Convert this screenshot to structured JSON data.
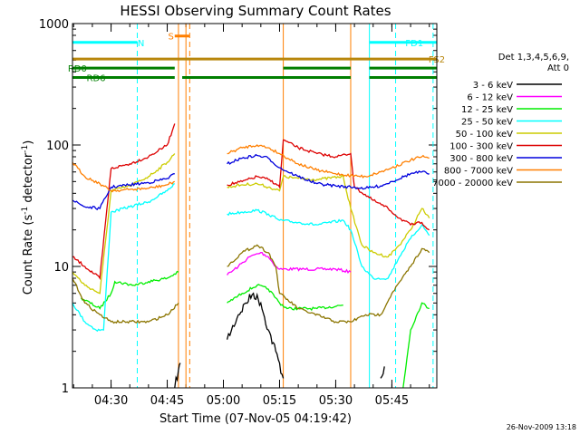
{
  "chart_data": {
    "type": "line",
    "title": "HESSI Observing Summary Count Rates",
    "xlabel": "Start Time (07-Nov-05 04:19:42)",
    "ylabel_main": "Count Rate (s",
    "ylabel_sup1": "-1",
    "ylabel_mid": " detector",
    "ylabel_sup2": "-1",
    "ylabel_end": ")",
    "xlim": [
      "04:19:42",
      "05:57:00"
    ],
    "ylim": [
      1,
      1000
    ],
    "yscale": "log",
    "x_ticks": [
      "04:30",
      "04:45",
      "05:00",
      "05:15",
      "05:30",
      "05:45"
    ],
    "y_ticks": [
      "1",
      "10",
      "100",
      "1000"
    ],
    "legend_position": "right",
    "legend_header": [
      "Det 1,3,4,5,6,9,",
      "Att 0"
    ],
    "series": [
      {
        "name": "3 - 6 keV",
        "color": "#000000",
        "points": [
          [
            "04:19:42",
            null
          ],
          [
            "04:47",
            1
          ],
          [
            "04:48",
            1.4
          ],
          [
            "04:48:30",
            1.6
          ],
          [
            "04:49",
            null
          ],
          [
            "05:01",
            2.5
          ],
          [
            "05:04",
            4
          ],
          [
            "05:06",
            5
          ],
          [
            "05:08",
            6
          ],
          [
            "05:10",
            5
          ],
          [
            "05:12",
            3
          ],
          [
            "05:14",
            2
          ],
          [
            "05:16",
            1.2
          ],
          [
            "05:17",
            null
          ],
          [
            "05:42",
            1.2
          ],
          [
            "05:43",
            1.5
          ],
          [
            "05:44",
            null
          ]
        ]
      },
      {
        "name": "6 - 12 keV",
        "color": "#ff00ff",
        "points": [
          [
            "05:01",
            8.5
          ],
          [
            "05:04",
            10
          ],
          [
            "05:07",
            12
          ],
          [
            "05:10",
            13
          ],
          [
            "05:12",
            12
          ],
          [
            "05:14",
            10
          ],
          [
            "05:15",
            9.5
          ],
          [
            "05:30",
            9.5
          ],
          [
            "05:34",
            9
          ]
        ]
      },
      {
        "name": "12 - 25 keV",
        "color": "#00ee00",
        "points": [
          [
            "04:22",
            5.5
          ],
          [
            "04:27",
            4.5
          ],
          [
            "04:30",
            6
          ],
          [
            "04:31",
            7.5
          ],
          [
            "04:36",
            7
          ],
          [
            "04:40",
            7.5
          ],
          [
            "04:45",
            8
          ],
          [
            "04:48",
            9
          ],
          [
            "04:49",
            null
          ],
          [
            "05:01",
            5
          ],
          [
            "05:05",
            6
          ],
          [
            "05:09",
            7
          ],
          [
            "05:12",
            6.5
          ],
          [
            "05:14",
            5.5
          ],
          [
            "05:15",
            5
          ],
          [
            "05:17",
            4.5
          ],
          [
            "05:25",
            4.5
          ],
          [
            "05:32",
            4.8
          ],
          [
            "05:34",
            null
          ],
          [
            "05:48",
            1
          ],
          [
            "05:50",
            3
          ],
          [
            "05:53",
            5
          ],
          [
            "05:55",
            4.5
          ]
        ]
      },
      {
        "name": "25 - 50 keV",
        "color": "#00ffff",
        "points": [
          [
            "04:19:42",
            5
          ],
          [
            "04:23",
            3.5
          ],
          [
            "04:26",
            3
          ],
          [
            "04:28",
            3
          ],
          [
            "04:30",
            28
          ],
          [
            "04:35",
            31
          ],
          [
            "04:40",
            34
          ],
          [
            "04:45",
            42
          ],
          [
            "04:47",
            48
          ],
          [
            "04:49",
            null
          ],
          [
            "05:01",
            27
          ],
          [
            "05:05",
            28
          ],
          [
            "05:09",
            29
          ],
          [
            "05:12",
            27
          ],
          [
            "05:14",
            25
          ],
          [
            "05:15",
            24
          ],
          [
            "05:20",
            23
          ],
          [
            "05:25",
            22
          ],
          [
            "05:32",
            24
          ],
          [
            "05:34",
            20
          ],
          [
            "05:37",
            10
          ],
          [
            "05:40",
            8
          ],
          [
            "05:44",
            8
          ],
          [
            "05:47",
            12
          ],
          [
            "05:50",
            17
          ],
          [
            "05:53",
            22
          ],
          [
            "05:55",
            18
          ]
        ]
      },
      {
        "name": "50 - 100 keV",
        "color": "#cccc00",
        "points": [
          [
            "04:19:42",
            9
          ],
          [
            "04:23",
            7
          ],
          [
            "04:27",
            6
          ],
          [
            "04:30",
            42
          ],
          [
            "04:35",
            46
          ],
          [
            "04:40",
            55
          ],
          [
            "04:45",
            72
          ],
          [
            "04:47",
            85
          ],
          [
            "04:49",
            null
          ],
          [
            "05:01",
            45
          ],
          [
            "05:05",
            47
          ],
          [
            "05:09",
            48
          ],
          [
            "05:12",
            45
          ],
          [
            "05:15",
            42
          ],
          [
            "05:16",
            55
          ],
          [
            "05:20",
            53
          ],
          [
            "05:25",
            52
          ],
          [
            "05:32",
            55
          ],
          [
            "05:34",
            30
          ],
          [
            "05:37",
            15
          ],
          [
            "05:40",
            13
          ],
          [
            "05:44",
            12
          ],
          [
            "05:47",
            15
          ],
          [
            "05:50",
            20
          ],
          [
            "05:53",
            30
          ],
          [
            "05:55",
            25
          ]
        ]
      },
      {
        "name": "100 - 300 keV",
        "color": "#dd0000",
        "points": [
          [
            "04:19:42",
            12
          ],
          [
            "04:23",
            10
          ],
          [
            "04:27",
            8
          ],
          [
            "04:30",
            64
          ],
          [
            "04:35",
            70
          ],
          [
            "04:40",
            80
          ],
          [
            "04:45",
            100
          ],
          [
            "04:47",
            150
          ],
          [
            "04:49",
            null
          ],
          [
            "05:01",
            47
          ],
          [
            "05:05",
            50
          ],
          [
            "05:09",
            55
          ],
          [
            "05:12",
            52
          ],
          [
            "05:14",
            48
          ],
          [
            "05:15",
            45
          ],
          [
            "05:16",
            110
          ],
          [
            "05:20",
            95
          ],
          [
            "05:25",
            85
          ],
          [
            "05:30",
            80
          ],
          [
            "05:34",
            85
          ],
          [
            "05:35",
            45
          ],
          [
            "05:40",
            35
          ],
          [
            "05:44",
            30
          ],
          [
            "05:47",
            25
          ],
          [
            "05:50",
            22
          ],
          [
            "05:53",
            23
          ],
          [
            "05:55",
            20
          ]
        ]
      },
      {
        "name": "300 - 800 keV",
        "color": "#0000dd",
        "points": [
          [
            "04:19:42",
            35
          ],
          [
            "04:23",
            31
          ],
          [
            "04:27",
            30
          ],
          [
            "04:30",
            45
          ],
          [
            "04:35",
            47
          ],
          [
            "04:40",
            49
          ],
          [
            "04:45",
            53
          ],
          [
            "04:47",
            58
          ],
          [
            "04:49",
            null
          ],
          [
            "05:01",
            70
          ],
          [
            "05:05",
            78
          ],
          [
            "05:09",
            82
          ],
          [
            "05:12",
            78
          ],
          [
            "05:15",
            65
          ],
          [
            "05:20",
            55
          ],
          [
            "05:25",
            48
          ],
          [
            "05:30",
            46
          ],
          [
            "05:34",
            45
          ],
          [
            "05:38",
            44
          ],
          [
            "05:42",
            46
          ],
          [
            "05:45",
            50
          ],
          [
            "05:50",
            58
          ],
          [
            "05:53",
            60
          ],
          [
            "05:55",
            58
          ]
        ]
      },
      {
        "name": "800 - 7000 keV",
        "color": "#ff7f00",
        "points": [
          [
            "04:19:42",
            72
          ],
          [
            "04:23",
            55
          ],
          [
            "04:27",
            48
          ],
          [
            "04:30",
            42
          ],
          [
            "04:35",
            43
          ],
          [
            "04:40",
            44
          ],
          [
            "04:45",
            47
          ],
          [
            "04:47",
            50
          ],
          [
            "04:49",
            null
          ],
          [
            "05:01",
            85
          ],
          [
            "05:05",
            95
          ],
          [
            "05:09",
            100
          ],
          [
            "05:12",
            95
          ],
          [
            "05:15",
            85
          ],
          [
            "05:20",
            70
          ],
          [
            "05:25",
            62
          ],
          [
            "05:30",
            58
          ],
          [
            "05:34",
            56
          ],
          [
            "05:38",
            55
          ],
          [
            "05:42",
            60
          ],
          [
            "05:45",
            65
          ],
          [
            "05:50",
            75
          ],
          [
            "05:53",
            80
          ],
          [
            "05:55",
            78
          ]
        ]
      },
      {
        "name": "7000 - 20000 keV",
        "color": "#8b7500",
        "points": [
          [
            "04:19:42",
            8
          ],
          [
            "04:23",
            5
          ],
          [
            "04:27",
            4
          ],
          [
            "04:30",
            3.5
          ],
          [
            "04:40",
            3.5
          ],
          [
            "04:45",
            4
          ],
          [
            "04:48",
            5
          ],
          [
            "04:49",
            null
          ],
          [
            "05:01",
            10
          ],
          [
            "05:05",
            13
          ],
          [
            "05:09",
            15
          ],
          [
            "05:12",
            13
          ],
          [
            "05:14",
            10
          ],
          [
            "05:15",
            6
          ],
          [
            "05:20",
            4.5
          ],
          [
            "05:30",
            3.5
          ],
          [
            "05:34",
            3.5
          ],
          [
            "05:38",
            4
          ],
          [
            "05:42",
            4
          ],
          [
            "05:45",
            6
          ],
          [
            "05:50",
            10
          ],
          [
            "05:53",
            14
          ],
          [
            "05:55",
            13
          ]
        ]
      }
    ],
    "vlines_solid": [
      {
        "time": "04:19:42",
        "color": "#00ffff"
      },
      {
        "time": "04:48",
        "color": "#ff7f00"
      },
      {
        "time": "04:50",
        "color": "#ff7f00"
      },
      {
        "time": "05:16",
        "color": "#ff7f00"
      },
      {
        "time": "05:34",
        "color": "#ff7f00"
      },
      {
        "time": "05:39",
        "color": "#00ffff"
      }
    ],
    "vlines_dashed": [
      {
        "time": "04:37",
        "color": "#00ffff"
      },
      {
        "time": "04:51",
        "color": "#ff7f00"
      },
      {
        "time": "05:46",
        "color": "#00ffff"
      },
      {
        "time": "05:56",
        "color": "#00ffff"
      }
    ],
    "flag_bars": [
      {
        "label": "N",
        "color": "#00ffff",
        "y": 700,
        "segments": [
          [
            "04:19:42",
            "04:37"
          ]
        ],
        "label_at": "04:38"
      },
      {
        "label": "S",
        "color": "#ff7f00",
        "y": 790,
        "segments": [
          [
            "04:47",
            "04:51"
          ]
        ],
        "label_at": "04:46"
      },
      {
        "label": "FD1",
        "color": "#00ffff",
        "y": 700,
        "segments": [
          [
            "05:39",
            "05:57"
          ]
        ],
        "label_at": "05:51"
      },
      {
        "label": "FS2",
        "color": "#b8860b",
        "y": 510,
        "segments": [
          [
            "04:19:42",
            "05:57"
          ]
        ],
        "label_at": "05:57"
      },
      {
        "label": "RD0",
        "color": "#007f00",
        "y": 430,
        "segments": [
          [
            "04:19:42",
            "04:47"
          ],
          [
            "05:16",
            "05:34"
          ],
          [
            "05:39",
            "05:57"
          ]
        ],
        "label_at": "04:21"
      },
      {
        "label": "RD6",
        "color": "#007f00",
        "y": 360,
        "segments": [
          [
            "04:19:42",
            "04:47"
          ],
          [
            "04:49",
            "05:34"
          ],
          [
            "05:39",
            "05:57"
          ]
        ],
        "label_at": "04:26"
      }
    ],
    "timestamp": "26-Nov-2009 13:18"
  }
}
